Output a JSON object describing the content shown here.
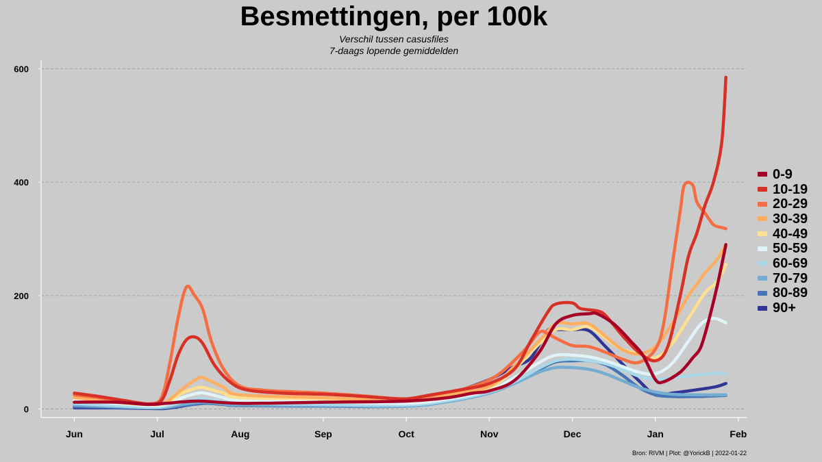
{
  "chart_data": {
    "type": "line",
    "title": "Besmettingen, per 100k",
    "subtitle_lines": [
      "Verschil tussen casusfiles",
      "7-daags lopende gemiddelden"
    ],
    "xlabel": "",
    "ylabel": "",
    "x_unit": "months since 2021-06-01",
    "xlim": [
      -0.4,
      8.1
    ],
    "ylim": [
      -15,
      615
    ],
    "x_ticks": [
      {
        "x": 0,
        "label": "Jun"
      },
      {
        "x": 1,
        "label": "Jul"
      },
      {
        "x": 2,
        "label": "Aug"
      },
      {
        "x": 3,
        "label": "Sep"
      },
      {
        "x": 4,
        "label": "Oct"
      },
      {
        "x": 5,
        "label": "Nov"
      },
      {
        "x": 6,
        "label": "Dec"
      },
      {
        "x": 7,
        "label": "Jan"
      },
      {
        "x": 8,
        "label": "Feb"
      }
    ],
    "y_ticks": [
      {
        "y": 0,
        "label": "0"
      },
      {
        "y": 200,
        "label": "200"
      },
      {
        "y": 400,
        "label": "400"
      },
      {
        "y": 600,
        "label": "600"
      }
    ],
    "grid": "horizontal dashed",
    "legend_position": "right",
    "series": [
      {
        "name": "0-9",
        "color": "#a50026",
        "points": [
          [
            0,
            12
          ],
          [
            0.5,
            12
          ],
          [
            0.9,
            8
          ],
          [
            1.1,
            10
          ],
          [
            1.5,
            14
          ],
          [
            2,
            10
          ],
          [
            3,
            12
          ],
          [
            4,
            14
          ],
          [
            4.5,
            20
          ],
          [
            4.8,
            28
          ],
          [
            5,
            32
          ],
          [
            5.3,
            50
          ],
          [
            5.6,
            100
          ],
          [
            5.8,
            150
          ],
          [
            6,
            165
          ],
          [
            6.2,
            168
          ],
          [
            6.3,
            168
          ],
          [
            6.5,
            150
          ],
          [
            6.7,
            120
          ],
          [
            6.85,
            95
          ],
          [
            7.0,
            52
          ],
          [
            7.1,
            48
          ],
          [
            7.3,
            65
          ],
          [
            7.45,
            90
          ],
          [
            7.55,
            110
          ],
          [
            7.65,
            160
          ],
          [
            7.75,
            220
          ],
          [
            7.85,
            290
          ]
        ]
      },
      {
        "name": "10-19",
        "color": "#d73027",
        "points": [
          [
            0,
            28
          ],
          [
            0.3,
            22
          ],
          [
            0.6,
            15
          ],
          [
            0.9,
            9
          ],
          [
            1.05,
            15
          ],
          [
            1.15,
            50
          ],
          [
            1.25,
            95
          ],
          [
            1.35,
            122
          ],
          [
            1.45,
            127
          ],
          [
            1.55,
            115
          ],
          [
            1.7,
            75
          ],
          [
            1.9,
            45
          ],
          [
            2.1,
            33
          ],
          [
            2.5,
            28
          ],
          [
            3,
            26
          ],
          [
            3.3,
            24
          ],
          [
            3.7,
            20
          ],
          [
            4,
            18
          ],
          [
            4.3,
            25
          ],
          [
            4.7,
            35
          ],
          [
            5,
            45
          ],
          [
            5.3,
            70
          ],
          [
            5.5,
            120
          ],
          [
            5.7,
            170
          ],
          [
            5.8,
            185
          ],
          [
            6,
            187
          ],
          [
            6.1,
            177
          ],
          [
            6.3,
            173
          ],
          [
            6.4,
            165
          ],
          [
            6.6,
            130
          ],
          [
            6.8,
            100
          ],
          [
            7,
            85
          ],
          [
            7.15,
            110
          ],
          [
            7.3,
            200
          ],
          [
            7.4,
            270
          ],
          [
            7.5,
            310
          ],
          [
            7.6,
            360
          ],
          [
            7.7,
            400
          ],
          [
            7.8,
            470
          ],
          [
            7.85,
            585
          ]
        ]
      },
      {
        "name": "20-29",
        "color": "#f46d43",
        "points": [
          [
            0,
            25
          ],
          [
            0.3,
            20
          ],
          [
            0.6,
            13
          ],
          [
            0.9,
            9
          ],
          [
            1.05,
            20
          ],
          [
            1.15,
            80
          ],
          [
            1.25,
            160
          ],
          [
            1.35,
            215
          ],
          [
            1.45,
            200
          ],
          [
            1.55,
            175
          ],
          [
            1.65,
            120
          ],
          [
            1.8,
            70
          ],
          [
            2,
            40
          ],
          [
            2.3,
            33
          ],
          [
            2.7,
            30
          ],
          [
            3,
            28
          ],
          [
            3.5,
            23
          ],
          [
            4,
            18
          ],
          [
            4.5,
            30
          ],
          [
            4.8,
            40
          ],
          [
            5.1,
            60
          ],
          [
            5.4,
            100
          ],
          [
            5.6,
            135
          ],
          [
            5.7,
            133
          ],
          [
            5.8,
            125
          ],
          [
            6,
            112
          ],
          [
            6.2,
            110
          ],
          [
            6.4,
            100
          ],
          [
            6.6,
            88
          ],
          [
            6.8,
            82
          ],
          [
            7,
            105
          ],
          [
            7.1,
            150
          ],
          [
            7.2,
            250
          ],
          [
            7.3,
            350
          ],
          [
            7.35,
            395
          ],
          [
            7.45,
            395
          ],
          [
            7.5,
            365
          ],
          [
            7.6,
            345
          ],
          [
            7.7,
            325
          ],
          [
            7.8,
            320
          ],
          [
            7.85,
            318
          ]
        ]
      },
      {
        "name": "30-39",
        "color": "#fdae61",
        "points": [
          [
            0,
            20
          ],
          [
            0.5,
            12
          ],
          [
            0.9,
            8
          ],
          [
            1.1,
            12
          ],
          [
            1.3,
            35
          ],
          [
            1.5,
            55
          ],
          [
            1.6,
            52
          ],
          [
            1.8,
            38
          ],
          [
            2,
            25
          ],
          [
            3,
            20
          ],
          [
            4,
            15
          ],
          [
            4.5,
            25
          ],
          [
            5,
            40
          ],
          [
            5.3,
            75
          ],
          [
            5.6,
            120
          ],
          [
            5.8,
            150
          ],
          [
            6,
            150
          ],
          [
            6.2,
            150
          ],
          [
            6.4,
            128
          ],
          [
            6.6,
            105
          ],
          [
            6.8,
            97
          ],
          [
            7,
            110
          ],
          [
            7.2,
            150
          ],
          [
            7.4,
            200
          ],
          [
            7.5,
            220
          ],
          [
            7.6,
            240
          ],
          [
            7.75,
            265
          ],
          [
            7.85,
            290
          ]
        ]
      },
      {
        "name": "40-49",
        "color": "#fee090",
        "points": [
          [
            0,
            22
          ],
          [
            0.5,
            12
          ],
          [
            0.9,
            8
          ],
          [
            1.1,
            10
          ],
          [
            1.3,
            28
          ],
          [
            1.5,
            38
          ],
          [
            1.6,
            36
          ],
          [
            1.8,
            28
          ],
          [
            2,
            20
          ],
          [
            3,
            18
          ],
          [
            4,
            14
          ],
          [
            4.5,
            22
          ],
          [
            5,
            38
          ],
          [
            5.3,
            70
          ],
          [
            5.6,
            115
          ],
          [
            5.8,
            140
          ],
          [
            6,
            140
          ],
          [
            6.2,
            145
          ],
          [
            6.4,
            125
          ],
          [
            6.6,
            105
          ],
          [
            6.8,
            98
          ],
          [
            7,
            90
          ],
          [
            7.2,
            115
          ],
          [
            7.4,
            160
          ],
          [
            7.6,
            205
          ],
          [
            7.75,
            225
          ],
          [
            7.85,
            255
          ]
        ]
      },
      {
        "name": "50-59",
        "color": "#e0f3f8",
        "points": [
          [
            0,
            15
          ],
          [
            0.5,
            10
          ],
          [
            0.9,
            6
          ],
          [
            1.1,
            8
          ],
          [
            1.3,
            20
          ],
          [
            1.5,
            28
          ],
          [
            1.6,
            27
          ],
          [
            1.8,
            20
          ],
          [
            2,
            15
          ],
          [
            3,
            13
          ],
          [
            4,
            10
          ],
          [
            4.5,
            18
          ],
          [
            5,
            33
          ],
          [
            5.3,
            55
          ],
          [
            5.6,
            82
          ],
          [
            5.8,
            95
          ],
          [
            6,
            95
          ],
          [
            6.2,
            92
          ],
          [
            6.4,
            85
          ],
          [
            6.6,
            75
          ],
          [
            6.8,
            65
          ],
          [
            7,
            62
          ],
          [
            7.2,
            80
          ],
          [
            7.4,
            120
          ],
          [
            7.55,
            150
          ],
          [
            7.7,
            160
          ],
          [
            7.85,
            152
          ]
        ]
      },
      {
        "name": "60-69",
        "color": "#abd9e9",
        "points": [
          [
            0,
            10
          ],
          [
            0.5,
            6
          ],
          [
            0.9,
            3
          ],
          [
            1.1,
            5
          ],
          [
            1.3,
            12
          ],
          [
            1.5,
            18
          ],
          [
            1.6,
            17
          ],
          [
            1.8,
            13
          ],
          [
            2,
            10
          ],
          [
            3,
            8
          ],
          [
            4,
            7
          ],
          [
            4.5,
            15
          ],
          [
            5,
            30
          ],
          [
            5.3,
            48
          ],
          [
            5.6,
            72
          ],
          [
            5.8,
            85
          ],
          [
            6,
            88
          ],
          [
            6.2,
            85
          ],
          [
            6.4,
            80
          ],
          [
            6.6,
            70
          ],
          [
            6.8,
            58
          ],
          [
            7,
            52
          ],
          [
            7.2,
            55
          ],
          [
            7.5,
            60
          ],
          [
            7.7,
            63
          ],
          [
            7.85,
            63
          ]
        ]
      },
      {
        "name": "70-79",
        "color": "#74add1",
        "points": [
          [
            0,
            7
          ],
          [
            0.5,
            4
          ],
          [
            0.9,
            2
          ],
          [
            1.1,
            3
          ],
          [
            1.3,
            8
          ],
          [
            1.5,
            12
          ],
          [
            1.6,
            12
          ],
          [
            1.8,
            9
          ],
          [
            2,
            7
          ],
          [
            3,
            6
          ],
          [
            4,
            5
          ],
          [
            4.5,
            13
          ],
          [
            5,
            28
          ],
          [
            5.3,
            45
          ],
          [
            5.6,
            65
          ],
          [
            5.8,
            73
          ],
          [
            6,
            73
          ],
          [
            6.2,
            70
          ],
          [
            6.4,
            62
          ],
          [
            6.6,
            50
          ],
          [
            6.8,
            38
          ],
          [
            7,
            30
          ],
          [
            7.2,
            26
          ],
          [
            7.5,
            25
          ],
          [
            7.85,
            25
          ]
        ]
      },
      {
        "name": "80-89",
        "color": "#4575b4",
        "points": [
          [
            0,
            4
          ],
          [
            0.5,
            3
          ],
          [
            0.9,
            2
          ],
          [
            1.1,
            2
          ],
          [
            1.3,
            6
          ],
          [
            1.5,
            9
          ],
          [
            1.6,
            10
          ],
          [
            1.8,
            8
          ],
          [
            2,
            6
          ],
          [
            3,
            5
          ],
          [
            4,
            5
          ],
          [
            4.5,
            14
          ],
          [
            5,
            32
          ],
          [
            5.3,
            48
          ],
          [
            5.6,
            70
          ],
          [
            5.8,
            83
          ],
          [
            6,
            85
          ],
          [
            6.2,
            85
          ],
          [
            6.4,
            78
          ],
          [
            6.6,
            60
          ],
          [
            6.8,
            38
          ],
          [
            7,
            25
          ],
          [
            7.2,
            22
          ],
          [
            7.5,
            22
          ],
          [
            7.85,
            24
          ]
        ]
      },
      {
        "name": "90+",
        "color": "#313695",
        "points": [
          [
            0,
            2
          ],
          [
            0.5,
            2
          ],
          [
            0.9,
            1
          ],
          [
            1.1,
            1
          ],
          [
            1.3,
            5
          ],
          [
            1.5,
            10
          ],
          [
            1.7,
            12
          ],
          [
            2,
            11
          ],
          [
            2.5,
            10
          ],
          [
            3,
            8
          ],
          [
            3.5,
            6
          ],
          [
            4,
            6
          ],
          [
            4.3,
            12
          ],
          [
            4.6,
            30
          ],
          [
            5,
            52
          ],
          [
            5.3,
            75
          ],
          [
            5.5,
            90
          ],
          [
            5.7,
            138
          ],
          [
            5.8,
            140
          ],
          [
            6,
            140
          ],
          [
            6.2,
            138
          ],
          [
            6.4,
            110
          ],
          [
            6.6,
            80
          ],
          [
            6.8,
            50
          ],
          [
            7,
            25
          ],
          [
            7.2,
            28
          ],
          [
            7.4,
            32
          ],
          [
            7.6,
            36
          ],
          [
            7.75,
            40
          ],
          [
            7.85,
            45
          ]
        ]
      }
    ]
  },
  "caption": "Bron: RIVM | Plot: @YorickB  |  2022-01-22"
}
